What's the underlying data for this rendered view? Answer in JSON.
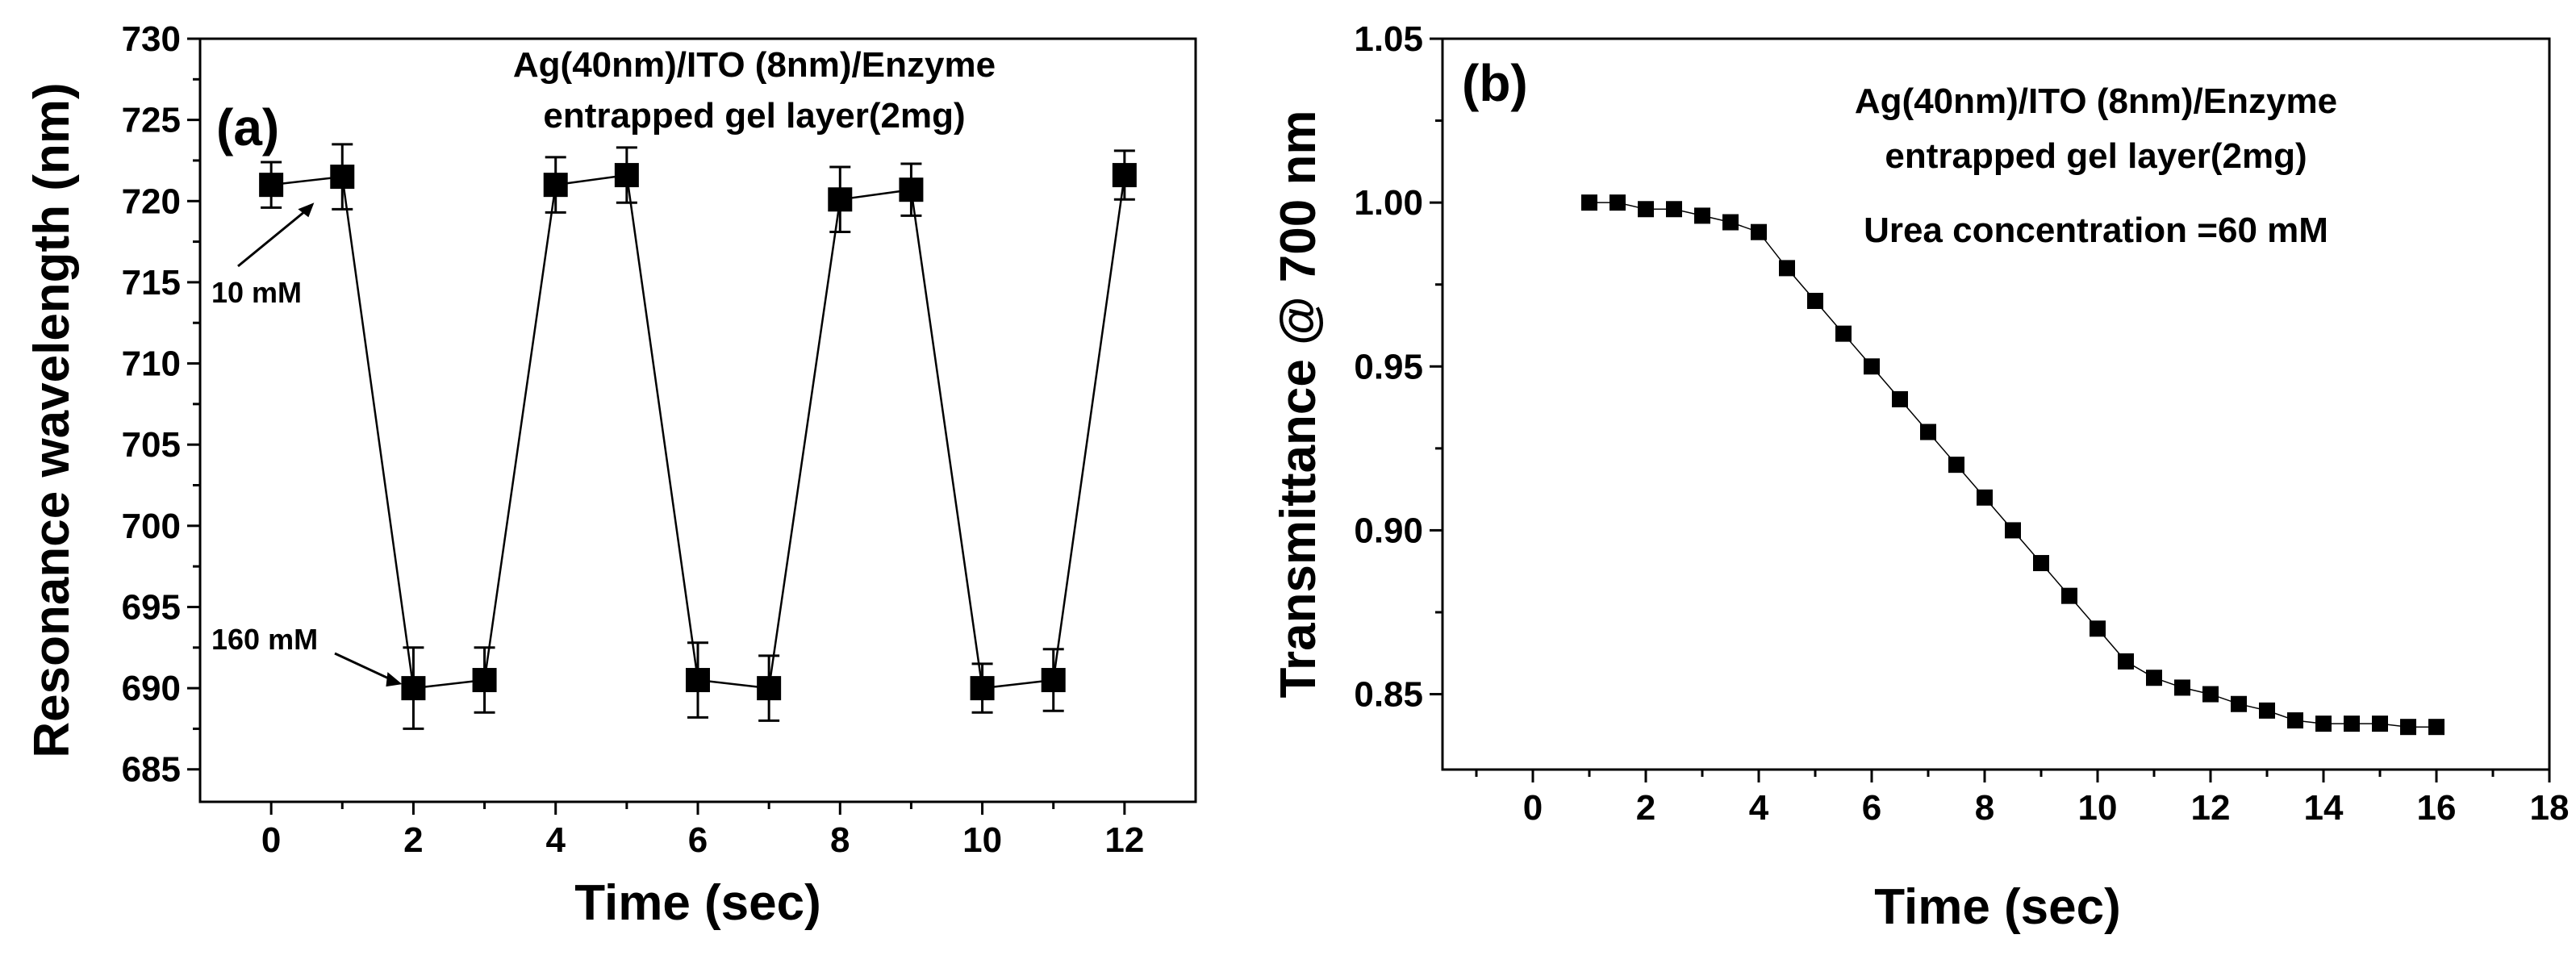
{
  "chart_data": [
    {
      "panel": "(a)",
      "type": "line",
      "title_lines": [
        "Ag(40nm)/ITO (8nm)/Enzyme",
        "entrapped gel layer(2mg)"
      ],
      "xlabel": "Time (sec)",
      "ylabel": "Resonance wavelength (nm)",
      "xlim": [
        -1,
        13
      ],
      "ylim": [
        683,
        730
      ],
      "xticks": [
        0,
        2,
        4,
        6,
        8,
        10,
        12
      ],
      "yticks": [
        685,
        690,
        695,
        700,
        705,
        710,
        715,
        720,
        725,
        730
      ],
      "series": [
        {
          "name": "Resonance wavelength",
          "marker": "square",
          "x": [
            0,
            1,
            2,
            3,
            4,
            5,
            6,
            7,
            8,
            9,
            10,
            11,
            12
          ],
          "y": [
            721,
            721.5,
            690,
            690.5,
            721,
            721.6,
            690.5,
            690,
            720.1,
            720.7,
            690,
            690.5,
            721.6
          ],
          "yerr": [
            1.4,
            2.0,
            2.5,
            2.0,
            1.7,
            1.7,
            2.3,
            2.0,
            2.0,
            1.6,
            1.5,
            1.9,
            1.5
          ]
        }
      ],
      "annotations": [
        {
          "text": "10 mM",
          "x": 0.15,
          "y": 720.2
        },
        {
          "text": "160 mM",
          "x": 2.0,
          "y": 690.3
        }
      ]
    },
    {
      "panel": "(b)",
      "type": "line",
      "title_lines": [
        "Ag(40nm)/ITO (8nm)/Enzyme",
        "entrapped gel layer(2mg)"
      ],
      "subtitle": "Urea concentration =60 mM",
      "xlabel": "Time (sec)",
      "ylabel": "Transmittance @  700 nm",
      "xlim": [
        -1.6,
        18
      ],
      "ylim": [
        0.827,
        1.05
      ],
      "xticks": [
        0,
        2,
        4,
        6,
        8,
        10,
        12,
        14,
        16,
        18
      ],
      "yticks": [
        0.85,
        0.9,
        0.95,
        1.0,
        1.05
      ],
      "ytick_labels": [
        "0.85",
        "0.90",
        "0.95",
        "1.00",
        "1.05"
      ],
      "series": [
        {
          "name": "Transmittance @ 700 nm",
          "marker": "square",
          "x": [
            1,
            1.5,
            2,
            2.5,
            3,
            3.5,
            4,
            4.5,
            5,
            5.5,
            6,
            6.5,
            7,
            7.5,
            8,
            8.5,
            9,
            9.5,
            10,
            10.5,
            11,
            11.5,
            12,
            12.5,
            13,
            13.5,
            14,
            14.5,
            15,
            15.5,
            16
          ],
          "y": [
            1.0,
            1.0,
            0.998,
            0.998,
            0.996,
            0.994,
            0.991,
            0.98,
            0.97,
            0.96,
            0.95,
            0.94,
            0.93,
            0.92,
            0.91,
            0.9,
            0.89,
            0.88,
            0.87,
            0.86,
            0.855,
            0.852,
            0.85,
            0.847,
            0.845,
            0.842,
            0.841,
            0.841,
            0.841,
            0.84,
            0.84
          ]
        }
      ]
    }
  ]
}
